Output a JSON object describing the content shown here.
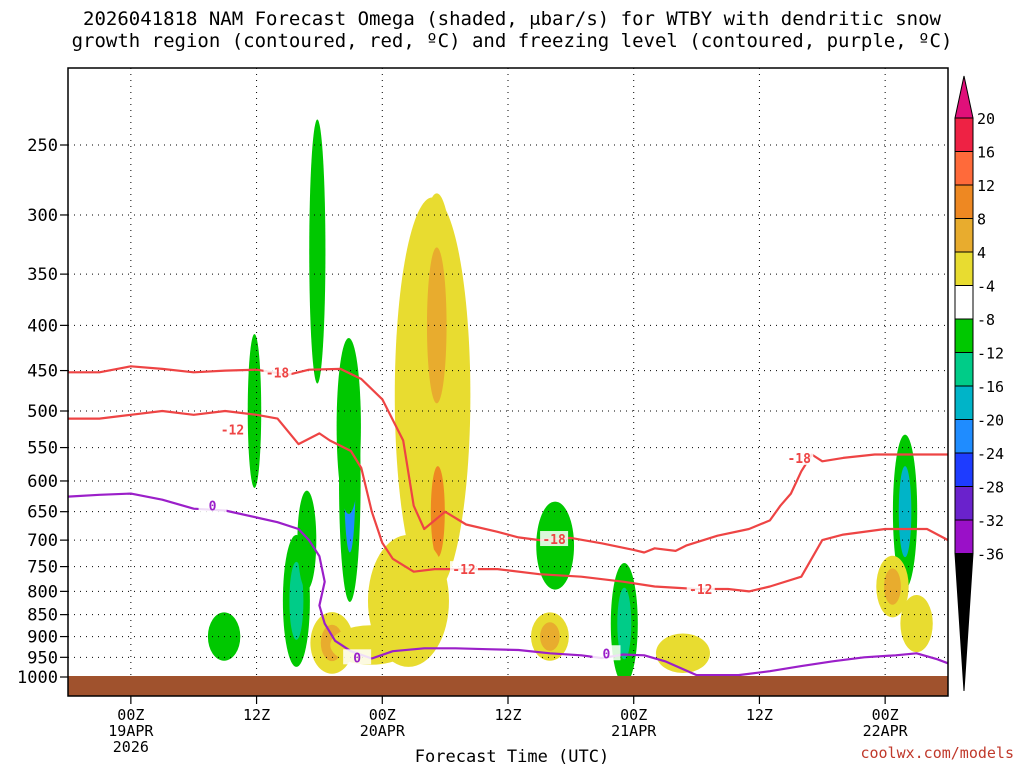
{
  "title_line1": "2026041818 NAM Forecast Omega (shaded, μbar/s) for WTBY with dendritic snow",
  "title_line2": "growth region (contoured, red, ºC) and freezing level (contoured, purple, ºC)",
  "credit": "coolwx.com/models",
  "chart_data": {
    "type": "heatmap",
    "title": "2026041818 NAM Forecast Omega (shaded, μbar/s) for WTBY with dendritic snow growth region (contoured, red, ºC) and freezing level (contoured, purple, ºC)",
    "xlabel": "Forecast Time (UTC)",
    "ylabel": "",
    "x_ticks": [
      {
        "h": 6,
        "label": [
          "00Z",
          "19APR",
          "2026"
        ]
      },
      {
        "h": 18,
        "label": [
          "12Z"
        ]
      },
      {
        "h": 30,
        "label": [
          "00Z",
          "20APR"
        ]
      },
      {
        "h": 42,
        "label": [
          "12Z"
        ]
      },
      {
        "h": 54,
        "label": [
          "00Z",
          "21APR"
        ]
      },
      {
        "h": 66,
        "label": [
          "12Z"
        ]
      },
      {
        "h": 78,
        "label": [
          "00Z",
          "22APR"
        ]
      }
    ],
    "xlim_hours": [
      0,
      84
    ],
    "y_ticks": [
      250,
      300,
      350,
      400,
      450,
      500,
      550,
      600,
      650,
      700,
      750,
      800,
      850,
      900,
      950,
      1000
    ],
    "ylim_hpa": [
      1000,
      200
    ],
    "yscale": "log",
    "grid": true,
    "colorbar": {
      "levels": [
        20,
        16,
        12,
        8,
        4,
        -4,
        -8,
        -12,
        -16,
        -20,
        -24,
        -28,
        -32,
        -36
      ],
      "colors": [
        "#ee2244",
        "#ff6a3a",
        "#ee8822",
        "#e8ac2e",
        "#e8dc30",
        "#ffffff",
        "#00c800",
        "#00cc88",
        "#00b4c8",
        "#1f8cff",
        "#1e3cff",
        "#6a22cc",
        "#9a10c8",
        "#a0a0a0"
      ],
      "top_arrow_color": "#e0107a",
      "bottom_arrow_color": "#000000"
    },
    "omega_blobs": [
      {
        "h": 23.8,
        "p": 355,
        "value": -6
      },
      {
        "h": 17.8,
        "p": 500,
        "value": -8
      },
      {
        "h": 23.8,
        "p": 330,
        "value": -6
      },
      {
        "h": 26.9,
        "p": 600,
        "value": -18
      },
      {
        "h": 26.8,
        "p": 520,
        "value": -8
      },
      {
        "h": 21.8,
        "p": 820,
        "value": -10
      },
      {
        "h": 14.9,
        "p": 900,
        "value": -6
      },
      {
        "h": 22.8,
        "p": 700,
        "value": -6
      },
      {
        "h": 34.8,
        "p": 480,
        "value": 6
      },
      {
        "h": 35.2,
        "p": 400,
        "value": 10
      },
      {
        "h": 35.3,
        "p": 650,
        "value": 12
      },
      {
        "h": 32.5,
        "p": 820,
        "value": 6
      },
      {
        "h": 25.2,
        "p": 915,
        "value": 10
      },
      {
        "h": 28.9,
        "p": 920,
        "value": 4
      },
      {
        "h": 46.5,
        "p": 710,
        "value": -6
      },
      {
        "h": 46.0,
        "p": 900,
        "value": 8
      },
      {
        "h": 53.1,
        "p": 870,
        "value": -12
      },
      {
        "h": 58.7,
        "p": 940,
        "value": 4
      },
      {
        "h": 79.9,
        "p": 650,
        "value": -16
      },
      {
        "h": 78.7,
        "p": 790,
        "value": 10
      },
      {
        "h": 81.0,
        "p": 870,
        "value": 6
      }
    ],
    "contours": [
      {
        "name": "-18",
        "color": "#ee4444",
        "points": [
          [
            0,
            452
          ],
          [
            3,
            452
          ],
          [
            6,
            445
          ],
          [
            9,
            448
          ],
          [
            12,
            452
          ],
          [
            15,
            450
          ],
          [
            18,
            449
          ],
          [
            21,
            455
          ],
          [
            23,
            449
          ],
          [
            26,
            448
          ],
          [
            28,
            460
          ],
          [
            30,
            485
          ],
          [
            32,
            540
          ],
          [
            33,
            640
          ],
          [
            34,
            680
          ],
          [
            36,
            650
          ],
          [
            38,
            672
          ],
          [
            41,
            685
          ],
          [
            43,
            695
          ],
          [
            45,
            700
          ],
          [
            48,
            696
          ],
          [
            51,
            706
          ],
          [
            54,
            718
          ],
          [
            55,
            723
          ],
          [
            56,
            715
          ],
          [
            58,
            720
          ],
          [
            59,
            710
          ],
          [
            62,
            692
          ],
          [
            65,
            680
          ],
          [
            67,
            665
          ],
          [
            68,
            640
          ],
          [
            69,
            620
          ],
          [
            70,
            585
          ],
          [
            71,
            560
          ],
          [
            72,
            570
          ],
          [
            74,
            565
          ],
          [
            77,
            560
          ],
          [
            80,
            560
          ],
          [
            84,
            560
          ]
        ]
      },
      {
        "name": "-12",
        "color": "#ee4444",
        "points": [
          [
            0,
            510
          ],
          [
            3,
            510
          ],
          [
            6,
            505
          ],
          [
            9,
            500
          ],
          [
            12,
            505
          ],
          [
            15,
            500
          ],
          [
            18,
            505
          ],
          [
            20,
            510
          ],
          [
            22,
            545
          ],
          [
            24,
            530
          ],
          [
            25,
            540
          ],
          [
            27,
            555
          ],
          [
            28,
            580
          ],
          [
            29,
            650
          ],
          [
            30,
            705
          ],
          [
            31,
            735
          ],
          [
            33,
            760
          ],
          [
            35,
            755
          ],
          [
            37,
            755
          ],
          [
            41,
            755
          ],
          [
            45,
            765
          ],
          [
            49,
            770
          ],
          [
            53,
            780
          ],
          [
            56,
            790
          ],
          [
            60,
            795
          ],
          [
            63,
            795
          ],
          [
            65,
            800
          ],
          [
            67,
            790
          ],
          [
            70,
            770
          ],
          [
            72,
            700
          ],
          [
            74,
            690
          ],
          [
            78,
            680
          ],
          [
            82,
            680
          ],
          [
            84,
            700
          ]
        ]
      },
      {
        "name": "0",
        "color": "#9b1fc9",
        "points": [
          [
            0,
            625
          ],
          [
            3,
            622
          ],
          [
            6,
            620
          ],
          [
            9,
            630
          ],
          [
            12,
            645
          ],
          [
            15,
            648
          ],
          [
            18,
            660
          ],
          [
            20,
            668
          ],
          [
            22,
            680
          ],
          [
            23,
            700
          ],
          [
            24,
            730
          ],
          [
            24.5,
            780
          ],
          [
            24,
            830
          ],
          [
            24.5,
            870
          ],
          [
            25.5,
            910
          ],
          [
            27,
            935
          ],
          [
            29,
            953
          ],
          [
            31,
            935
          ],
          [
            34,
            928
          ],
          [
            37,
            928
          ],
          [
            40,
            930
          ],
          [
            43,
            932
          ],
          [
            46,
            940
          ],
          [
            49,
            945
          ],
          [
            51,
            952
          ],
          [
            53,
            943
          ],
          [
            55,
            945
          ],
          [
            57,
            960
          ],
          [
            60,
            995
          ],
          [
            64,
            995
          ],
          [
            67,
            985
          ],
          [
            70,
            972
          ],
          [
            73,
            960
          ],
          [
            76,
            950
          ],
          [
            79,
            945
          ],
          [
            81,
            940
          ],
          [
            83,
            955
          ],
          [
            84,
            965
          ]
        ]
      }
    ],
    "contour_labels": [
      {
        "text": "-18",
        "h": 20.0,
        "p": 452,
        "color": "#ee4444"
      },
      {
        "text": "-12",
        "h": 15.7,
        "p": 525,
        "color": "#ee4444"
      },
      {
        "text": "-18",
        "h": 46.4,
        "p": 698,
        "color": "#ee4444"
      },
      {
        "text": "-12",
        "h": 37.8,
        "p": 755,
        "color": "#ee4444"
      },
      {
        "text": "-12",
        "h": 60.4,
        "p": 795,
        "color": "#ee4444"
      },
      {
        "text": "-18",
        "h": 69.8,
        "p": 565,
        "color": "#ee4444"
      },
      {
        "text": "0",
        "h": 13.8,
        "p": 640,
        "color": "#9b1fc9"
      },
      {
        "text": "0",
        "h": 27.6,
        "p": 950,
        "color": "#9b1fc9"
      },
      {
        "text": "0",
        "h": 51.4,
        "p": 940,
        "color": "#9b1fc9"
      }
    ],
    "ground_color": "#a0522d"
  }
}
